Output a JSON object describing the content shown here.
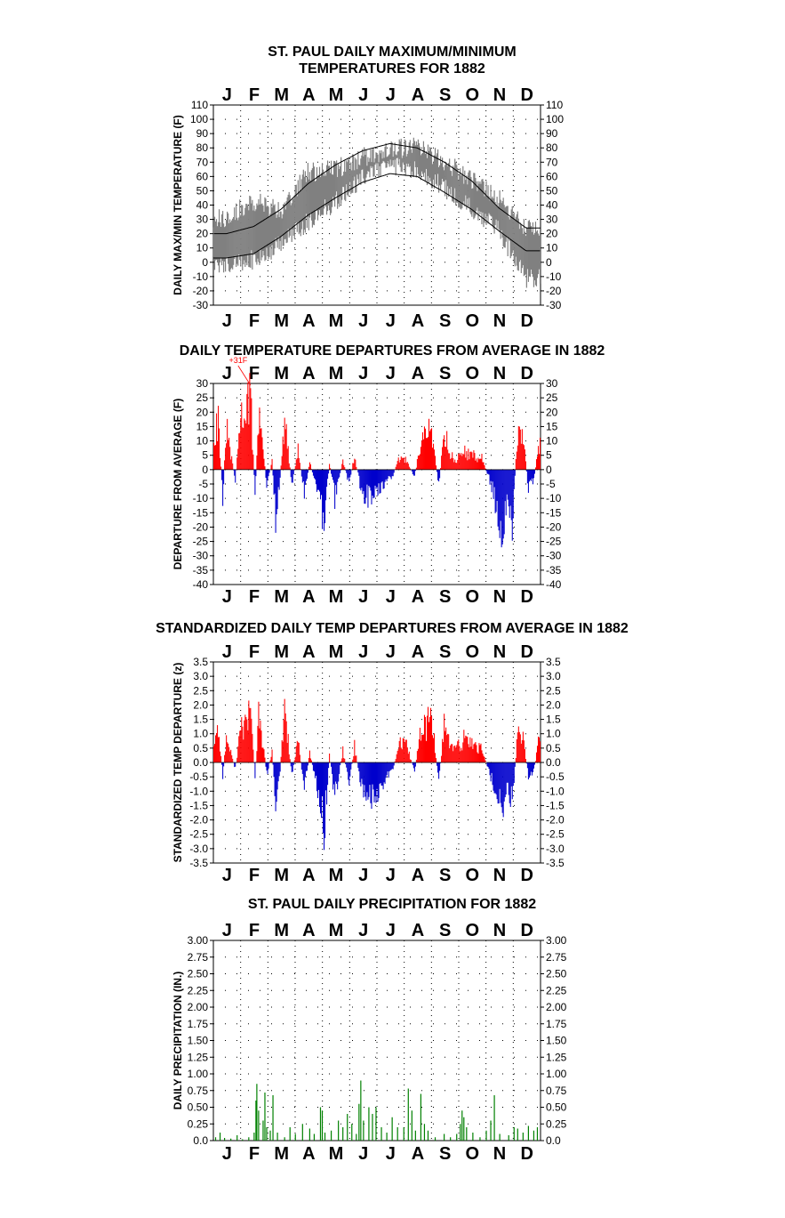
{
  "page": {
    "background": "#ffffff"
  },
  "months": [
    "J",
    "F",
    "M",
    "A",
    "M",
    "J",
    "J",
    "A",
    "S",
    "O",
    "N",
    "D"
  ],
  "chart_data": [
    {
      "type": "line",
      "title": [
        "ST. PAUL DAILY MAXIMUM/MINIMUM",
        "TEMPERATURES FOR 1882"
      ],
      "ylabel": "DAILY MAX/MIN TEMPERATURE (F)",
      "ylim": [
        -30,
        110
      ],
      "yticks": [
        -30,
        -20,
        -10,
        0,
        10,
        20,
        30,
        40,
        50,
        60,
        70,
        80,
        90,
        100,
        110
      ],
      "ytick_labels": [
        "-30",
        "-20",
        "-10",
        "0",
        "10",
        "20",
        "30",
        "40",
        "50",
        "60",
        "70",
        "80",
        "90",
        "100",
        "110"
      ],
      "xlabel": "",
      "grid": true,
      "series": [
        {
          "name": "",
          "kind": "daily-range-envelope",
          "color": "#808080",
          "x_month_mid": [
            1,
            2,
            3,
            4,
            5,
            6,
            7,
            8,
            9,
            10,
            11,
            12
          ],
          "max_approx": [
            38,
            50,
            42,
            70,
            72,
            80,
            86,
            88,
            78,
            64,
            52,
            30
          ],
          "min_approx": [
            -10,
            -5,
            5,
            22,
            35,
            52,
            60,
            58,
            45,
            30,
            15,
            -18
          ]
        },
        {
          "name": "",
          "kind": "normal-max",
          "color": "#000000",
          "x_month_mid": [
            1,
            2,
            3,
            4,
            5,
            6,
            7,
            8,
            9,
            10,
            11,
            12
          ],
          "y": [
            20,
            25,
            37,
            55,
            68,
            78,
            83,
            80,
            70,
            57,
            38,
            24
          ]
        },
        {
          "name": "",
          "kind": "normal-min",
          "color": "#000000",
          "x_month_mid": [
            1,
            2,
            3,
            4,
            5,
            6,
            7,
            8,
            9,
            10,
            11,
            12
          ],
          "y": [
            3,
            6,
            18,
            33,
            45,
            56,
            62,
            60,
            49,
            37,
            22,
            8
          ]
        }
      ]
    },
    {
      "type": "bar",
      "title": [
        "DAILY TEMPERATURE DEPARTURES FROM AVERAGE IN 1882"
      ],
      "ylabel": "DEPARTURE FROM AVERAGE (F)",
      "ylim": [
        -40,
        30
      ],
      "yticks": [
        -40,
        -35,
        -30,
        -25,
        -20,
        -15,
        -10,
        -5,
        0,
        5,
        10,
        15,
        20,
        25,
        30
      ],
      "ytick_labels": [
        "-40",
        "-35",
        "-30",
        "-25",
        "-20",
        "-15",
        "-10",
        "-5",
        "0",
        "5",
        "10",
        "15",
        "20",
        "25",
        "30"
      ],
      "annotation": "+31F",
      "grid": true,
      "positive_color": "#ff0000",
      "negative_color": "#0000cc",
      "keypoints_day_value": [
        [
          1,
          15
        ],
        [
          6,
          22
        ],
        [
          11,
          -12
        ],
        [
          15,
          18
        ],
        [
          25,
          -5
        ],
        [
          30,
          20
        ],
        [
          36,
          28
        ],
        [
          42,
          31
        ],
        [
          47,
          -12
        ],
        [
          51,
          24
        ],
        [
          56,
          10
        ],
        [
          60,
          -8
        ],
        [
          66,
          4
        ],
        [
          70,
          -20
        ],
        [
          75,
          -3
        ],
        [
          80,
          21
        ],
        [
          88,
          -6
        ],
        [
          95,
          8
        ],
        [
          102,
          -10
        ],
        [
          108,
          3
        ],
        [
          114,
          -5
        ],
        [
          120,
          -18
        ],
        [
          124,
          -24
        ],
        [
          130,
          3
        ],
        [
          136,
          -12
        ],
        [
          145,
          4
        ],
        [
          152,
          -6
        ],
        [
          158,
          6
        ],
        [
          166,
          -10
        ],
        [
          175,
          -12
        ],
        [
          182,
          -9
        ],
        [
          190,
          -6
        ],
        [
          200,
          -3
        ],
        [
          208,
          5
        ],
        [
          216,
          4
        ],
        [
          225,
          -3
        ],
        [
          232,
          12
        ],
        [
          238,
          15
        ],
        [
          244,
          18
        ],
        [
          252,
          -8
        ],
        [
          258,
          18
        ],
        [
          265,
          6
        ],
        [
          272,
          4
        ],
        [
          280,
          8
        ],
        [
          290,
          6
        ],
        [
          300,
          5
        ],
        [
          310,
          -6
        ],
        [
          318,
          -18
        ],
        [
          322,
          -30
        ],
        [
          328,
          -12
        ],
        [
          334,
          -22
        ],
        [
          340,
          18
        ],
        [
          346,
          14
        ],
        [
          352,
          -8
        ],
        [
          358,
          -5
        ],
        [
          363,
          10
        ]
      ]
    },
    {
      "type": "bar",
      "title": [
        "STANDARDIZED DAILY TEMP DEPARTURES FROM AVERAGE IN 1882"
      ],
      "ylabel": "STANDARDIZED TEMP DEPARTURE (z)",
      "ylim": [
        -3.5,
        3.5
      ],
      "yticks": [
        -3.5,
        -3.0,
        -2.5,
        -2.0,
        -1.5,
        -1.0,
        -0.5,
        0.0,
        0.5,
        1.0,
        1.5,
        2.0,
        2.5,
        3.0,
        3.5
      ],
      "ytick_labels": [
        "-3.5",
        "-3.0",
        "-2.5",
        "-2.0",
        "-1.5",
        "-1.0",
        "-0.5",
        "0.0",
        "0.5",
        "1.0",
        "1.5",
        "2.0",
        "2.5",
        "3.0",
        "3.5"
      ],
      "grid": true,
      "positive_color": "#ff0000",
      "negative_color": "#0000cc",
      "keypoints_day_value": [
        [
          1,
          0.9
        ],
        [
          6,
          1.5
        ],
        [
          11,
          -0.6
        ],
        [
          15,
          1.1
        ],
        [
          25,
          -0.3
        ],
        [
          30,
          1.2
        ],
        [
          36,
          1.8
        ],
        [
          42,
          2.2
        ],
        [
          47,
          -0.6
        ],
        [
          51,
          1.9
        ],
        [
          56,
          0.8
        ],
        [
          60,
          -0.5
        ],
        [
          66,
          0.4
        ],
        [
          70,
          -1.7
        ],
        [
          75,
          -0.3
        ],
        [
          80,
          2.4
        ],
        [
          88,
          -0.5
        ],
        [
          95,
          0.9
        ],
        [
          102,
          -1.1
        ],
        [
          108,
          0.4
        ],
        [
          114,
          -0.6
        ],
        [
          120,
          -2.1
        ],
        [
          124,
          -2.9
        ],
        [
          130,
          0.3
        ],
        [
          136,
          -1.5
        ],
        [
          145,
          0.5
        ],
        [
          152,
          -0.8
        ],
        [
          158,
          0.7
        ],
        [
          166,
          -1.2
        ],
        [
          175,
          -1.6
        ],
        [
          182,
          -1.4
        ],
        [
          190,
          -0.9
        ],
        [
          200,
          -0.4
        ],
        [
          208,
          0.8
        ],
        [
          216,
          0.7
        ],
        [
          225,
          -0.4
        ],
        [
          232,
          1.4
        ],
        [
          238,
          1.6
        ],
        [
          244,
          2.0
        ],
        [
          252,
          -0.9
        ],
        [
          258,
          1.7
        ],
        [
          265,
          0.7
        ],
        [
          272,
          0.6
        ],
        [
          280,
          1.0
        ],
        [
          290,
          0.8
        ],
        [
          300,
          0.6
        ],
        [
          310,
          -0.6
        ],
        [
          318,
          -1.4
        ],
        [
          322,
          -2.4
        ],
        [
          328,
          -1.0
        ],
        [
          334,
          -1.6
        ],
        [
          340,
          1.3
        ],
        [
          346,
          1.1
        ],
        [
          352,
          -0.6
        ],
        [
          358,
          -0.4
        ],
        [
          363,
          0.8
        ]
      ]
    },
    {
      "type": "bar",
      "title": [
        "ST. PAUL DAILY PRECIPITATION FOR 1882"
      ],
      "ylabel": "DAILY PRECIPITATION (IN.)",
      "ylim": [
        0,
        3.0
      ],
      "yticks": [
        0,
        0.25,
        0.5,
        0.75,
        1.0,
        1.25,
        1.5,
        1.75,
        2.0,
        2.25,
        2.5,
        2.75,
        3.0
      ],
      "ytick_labels": [
        "0.0",
        "0.25",
        "0.50",
        "0.75",
        "1.00",
        "1.25",
        "1.50",
        "1.75",
        "2.00",
        "2.25",
        "2.50",
        "2.75",
        "3.00"
      ],
      "grid": true,
      "color": "#008000",
      "days_inches": [
        [
          3,
          0.05
        ],
        [
          8,
          0.12
        ],
        [
          13,
          0.04
        ],
        [
          20,
          0.03
        ],
        [
          27,
          0.08
        ],
        [
          33,
          0.02
        ],
        [
          40,
          0.05
        ],
        [
          46,
          0.12
        ],
        [
          48,
          0.6
        ],
        [
          49,
          0.85
        ],
        [
          51,
          0.45
        ],
        [
          56,
          0.3
        ],
        [
          58,
          0.72
        ],
        [
          60,
          0.2
        ],
        [
          64,
          0.15
        ],
        [
          67,
          0.68
        ],
        [
          72,
          0.12
        ],
        [
          80,
          0.05
        ],
        [
          86,
          0.2
        ],
        [
          92,
          0.1
        ],
        [
          100,
          0.25
        ],
        [
          108,
          0.18
        ],
        [
          113,
          0.1
        ],
        [
          120,
          0.5
        ],
        [
          122,
          0.45
        ],
        [
          125,
          0.12
        ],
        [
          132,
          0.15
        ],
        [
          140,
          0.3
        ],
        [
          145,
          0.2
        ],
        [
          150,
          0.4
        ],
        [
          155,
          0.25
        ],
        [
          160,
          0.1
        ],
        [
          163,
          0.55
        ],
        [
          165,
          0.9
        ],
        [
          168,
          0.3
        ],
        [
          174,
          0.5
        ],
        [
          178,
          0.4
        ],
        [
          182,
          0.5
        ],
        [
          188,
          0.2
        ],
        [
          194,
          0.12
        ],
        [
          200,
          0.35
        ],
        [
          206,
          0.2
        ],
        [
          213,
          0.2
        ],
        [
          218,
          0.78
        ],
        [
          222,
          0.45
        ],
        [
          226,
          0.15
        ],
        [
          232,
          0.7
        ],
        [
          236,
          0.25
        ],
        [
          240,
          0.15
        ],
        [
          248,
          0.05
        ],
        [
          258,
          0.1
        ],
        [
          265,
          0.05
        ],
        [
          272,
          0.1
        ],
        [
          276,
          0.25
        ],
        [
          278,
          0.45
        ],
        [
          280,
          0.35
        ],
        [
          283,
          0.2
        ],
        [
          290,
          0.12
        ],
        [
          298,
          0.05
        ],
        [
          305,
          0.15
        ],
        [
          310,
          0.3
        ],
        [
          314,
          0.68
        ],
        [
          320,
          0.1
        ],
        [
          330,
          0.08
        ],
        [
          336,
          0.2
        ],
        [
          340,
          0.18
        ],
        [
          346,
          0.12
        ],
        [
          352,
          0.22
        ],
        [
          358,
          0.15
        ],
        [
          362,
          0.2
        ]
      ]
    }
  ]
}
